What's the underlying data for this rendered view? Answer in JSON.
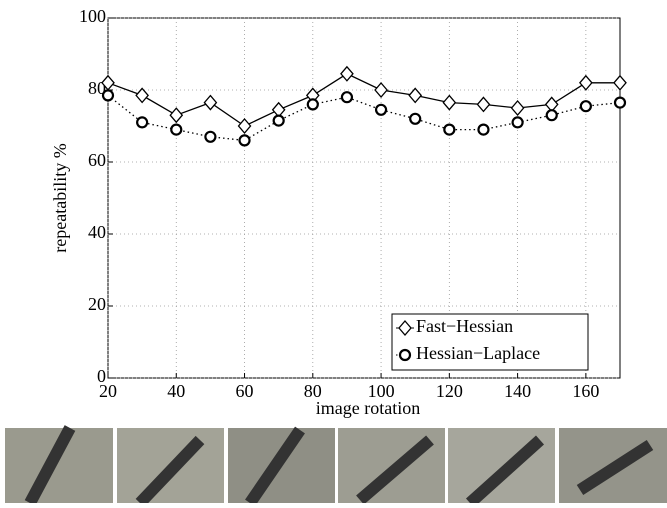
{
  "chart_data": {
    "type": "line",
    "x_label": "image rotation",
    "y_label": "repeatability %",
    "x": [
      20,
      30,
      40,
      50,
      60,
      70,
      80,
      90,
      100,
      110,
      120,
      130,
      140,
      150,
      160,
      170
    ],
    "series": [
      {
        "name": "Fast−Hessian",
        "color": "#000000",
        "marker": "diamond",
        "linestyle": "solid",
        "values": [
          82,
          78.5,
          73,
          76.5,
          70,
          74.5,
          78.5,
          84.5,
          80,
          78.5,
          76.5,
          76,
          75,
          76,
          82,
          82
        ]
      },
      {
        "name": "Hessian−Laplace",
        "color": "#000000",
        "marker": "circle",
        "linestyle": "dotted",
        "values": [
          78.5,
          71,
          69,
          67,
          66,
          71.5,
          76,
          78,
          74.5,
          72,
          69,
          69,
          71,
          73,
          75.5,
          76.5
        ]
      }
    ],
    "xlim": [
      20,
      170
    ],
    "xticks": [
      20,
      40,
      60,
      80,
      100,
      120,
      140,
      160
    ],
    "ylim": [
      0,
      100
    ],
    "yticks": [
      0,
      20,
      40,
      60,
      80,
      100
    ],
    "grid": true,
    "legend": "lower right"
  }
}
